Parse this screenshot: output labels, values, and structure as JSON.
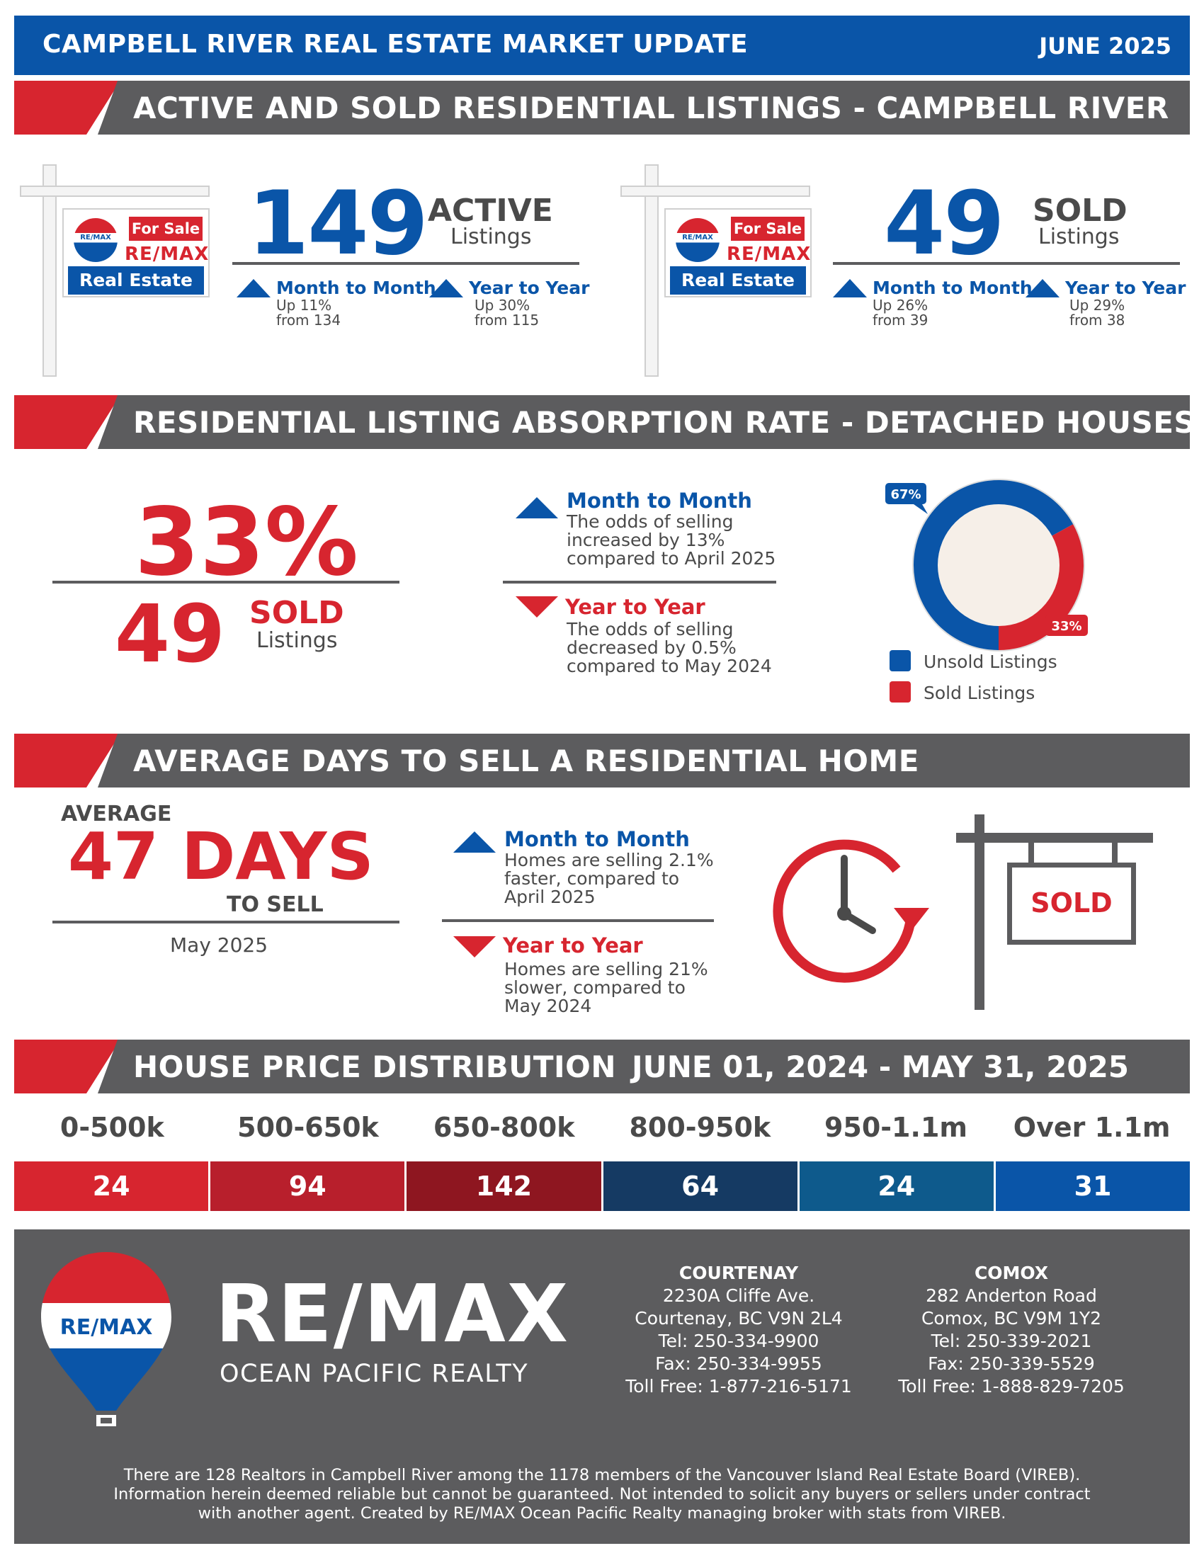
{
  "header": {
    "title": "CAMPBELL RIVER REAL ESTATE MARKET UPDATE",
    "date": "JUNE 2025"
  },
  "sections": {
    "listings": "ACTIVE AND SOLD RESIDENTIAL LISTINGS - CAMPBELL RIVER",
    "absorption": "RESIDENTIAL LISTING ABSORPTION RATE - DETACHED HOUSES",
    "days": "AVERAGE DAYS TO SELL A RESIDENTIAL HOME",
    "distribution": "HOUSE PRICE DISTRIBUTION",
    "distribution_range": "JUNE 01, 2024 - MAY 31, 2025"
  },
  "sign": {
    "for_sale": "For Sale",
    "brand": "RE/MAX",
    "balloon": "RE/MAX",
    "bottom": "Real Estate"
  },
  "active": {
    "count": "149",
    "label": "ACTIVE",
    "sub": "Listings",
    "mtm_title": "Month to Month",
    "mtm_line1": "Up 11%",
    "mtm_line2": "from 134",
    "yty_title": "Year to Year",
    "yty_line1": "Up 30%",
    "yty_line2": "from 115"
  },
  "sold": {
    "count": "49",
    "label": "SOLD",
    "sub": "Listings",
    "mtm_title": "Month to Month",
    "mtm_line1": "Up 26%",
    "mtm_line2": "from 39",
    "yty_title": "Year to Year",
    "yty_line1": "Up 29%",
    "yty_line2": "from 38"
  },
  "absorption": {
    "rate": "33%",
    "sold_count": "49",
    "sold_label": "SOLD",
    "sold_sub": "Listings",
    "mtm_title": "Month to Month",
    "mtm_text": [
      "The odds of selling",
      "increased by 13%",
      "compared to April 2025"
    ],
    "yty_title": "Year to Year",
    "yty_text": [
      "The odds of selling",
      "decreased by 0.5%",
      "compared to May 2024"
    ],
    "donut": {
      "unsold_pct": 67,
      "sold_pct": 33,
      "unsold_label": "67%",
      "sold_label": "33%",
      "unsold_color": "#0a55a8",
      "sold_color": "#d7252f"
    },
    "legend_unsold": "Unsold Listings",
    "legend_sold": "Sold Listings"
  },
  "days": {
    "average": "AVERAGE",
    "value": "47 DAYS",
    "to_sell": "TO SELL",
    "period": "May 2025",
    "mtm_title": "Month to Month",
    "mtm_text": [
      "Homes are selling 2.1%",
      "faster, compared to",
      "April 2025"
    ],
    "yty_title": "Year to Year",
    "yty_text": [
      "Homes are selling 21%",
      "slower, compared to",
      "May 2024"
    ],
    "sold_sign": "SOLD"
  },
  "distribution": {
    "ranges": [
      {
        "label": "0-500k",
        "count": "24",
        "color": "#d7252f"
      },
      {
        "label": "500-650k",
        "count": "94",
        "color": "#b81f2c"
      },
      {
        "label": "650-800k",
        "count": "142",
        "color": "#8e1620"
      },
      {
        "label": "800-950k",
        "count": "64",
        "color": "#153a63"
      },
      {
        "label": "950-1.1m",
        "count": "24",
        "color": "#0e5a8c"
      },
      {
        "label": "Over 1.1m",
        "count": "31",
        "color": "#0a55a8"
      }
    ]
  },
  "footer": {
    "logo_word": "RE/MAX",
    "logo_sub": "OCEAN PACIFIC REALTY",
    "balloon_text": "RE/MAX",
    "courtenay": {
      "head": "COURTENAY",
      "line1": "2230A Cliffe Ave.",
      "line2": "Courtenay, BC V9N 2L4",
      "tel": "Tel: 250-334-9900",
      "fax": "Fax: 250-334-9955",
      "toll": "Toll Free: 1-877-216-5171"
    },
    "comox": {
      "head": "COMOX",
      "line1": "282 Anderton Road",
      "line2": "Comox, BC V9M 1Y2",
      "tel": "Tel: 250-339-2021",
      "fax": "Fax: 250-339-5529",
      "toll": "Toll Free: 1-888-829-7205"
    },
    "disclaimer": [
      "There are 128 Realtors in Campbell River among the 1178 members of the Vancouver Island Real Estate Board (VIREB).",
      "Information herein deemed reliable but cannot be guaranteed. Not intended to solicit any buyers or sellers under contract",
      "with another agent.   Created by RE/MAX Ocean Pacific Realty managing broker with stats from VIREB."
    ]
  }
}
